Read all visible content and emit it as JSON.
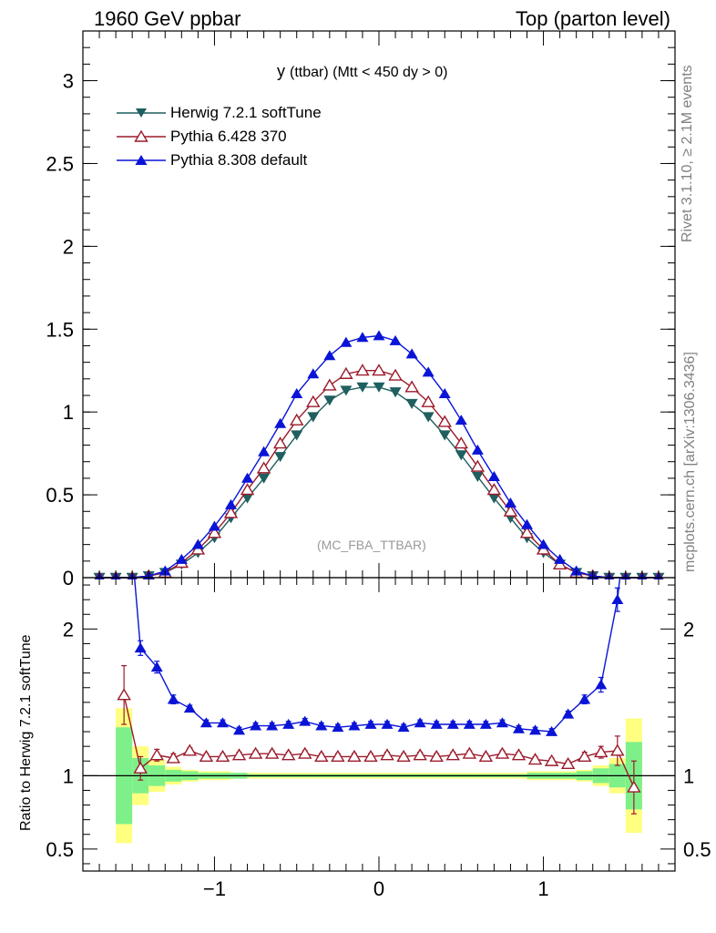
{
  "header": {
    "left": "1960 GeV ppbar",
    "right": "Top (parton level)"
  },
  "side_text": {
    "rivet": "Rivet 3.1.10, ≥ 2.1M events",
    "mcplots": "mcplots.cern.ch [arXiv:1306.3436]"
  },
  "watermark": "(MC_FBA_TTBAR)",
  "colors": {
    "herwig": "#1f5f5f",
    "pythia6": "#9b1b2b",
    "pythia8": "#0a14d6",
    "band_inner": "#7ef08a",
    "band_outer": "#ffff80"
  },
  "chart_data": [
    {
      "type": "line",
      "title": "y (ttbar) (Mtt < 450 dy > 0)",
      "title_main": "y",
      "title_rest": "(ttbar) (Mtt < 450 dy > 0)",
      "xlim": [
        -1.8,
        1.8
      ],
      "ylim": [
        0,
        3.3
      ],
      "y_ticks": [
        0,
        0.5,
        1,
        1.5,
        2,
        2.5,
        3
      ],
      "y_tick_labels": [
        "0",
        "0.5",
        "1",
        "1.5",
        "2",
        "2.5",
        "3"
      ],
      "legend_position": "top-left",
      "x": [
        -1.7,
        -1.6,
        -1.5,
        -1.4,
        -1.3,
        -1.2,
        -1.1,
        -1.0,
        -0.9,
        -0.8,
        -0.7,
        -0.6,
        -0.5,
        -0.4,
        -0.3,
        -0.2,
        -0.1,
        0.0,
        0.1,
        0.2,
        0.3,
        0.4,
        0.5,
        0.6,
        0.7,
        0.8,
        0.9,
        1.0,
        1.1,
        1.2,
        1.3,
        1.4,
        1.5,
        1.6,
        1.7
      ],
      "series": [
        {
          "name": "Herwig 7.2.1 softTune",
          "marker": "triangle-down",
          "values": [
            0.0,
            0.0,
            0.0,
            0.01,
            0.03,
            0.08,
            0.15,
            0.24,
            0.36,
            0.48,
            0.6,
            0.73,
            0.86,
            0.97,
            1.07,
            1.13,
            1.15,
            1.15,
            1.12,
            1.05,
            0.97,
            0.86,
            0.74,
            0.61,
            0.48,
            0.36,
            0.24,
            0.15,
            0.08,
            0.03,
            0.01,
            0.0,
            0.0,
            0.0,
            0.0
          ]
        },
        {
          "name": "Pythia 6.428 370",
          "marker": "triangle-up-open",
          "values": [
            0.0,
            0.0,
            0.0,
            0.01,
            0.03,
            0.09,
            0.17,
            0.27,
            0.39,
            0.53,
            0.66,
            0.81,
            0.95,
            1.06,
            1.16,
            1.23,
            1.25,
            1.25,
            1.22,
            1.15,
            1.06,
            0.94,
            0.81,
            0.67,
            0.53,
            0.4,
            0.27,
            0.17,
            0.08,
            0.03,
            0.01,
            0.0,
            0.0,
            0.0,
            0.0
          ]
        },
        {
          "name": "Pythia 8.308 default",
          "marker": "triangle-up",
          "values": [
            0.0,
            0.0,
            0.0,
            0.01,
            0.04,
            0.11,
            0.2,
            0.31,
            0.44,
            0.6,
            0.76,
            0.93,
            1.11,
            1.23,
            1.34,
            1.42,
            1.45,
            1.46,
            1.43,
            1.35,
            1.24,
            1.11,
            0.95,
            0.77,
            0.61,
            0.45,
            0.32,
            0.2,
            0.11,
            0.04,
            0.01,
            0.0,
            0.0,
            0.0,
            0.0
          ]
        }
      ]
    },
    {
      "type": "line",
      "ylabel": "Ratio to Herwig 7.2.1 softTune",
      "xlim": [
        -1.8,
        1.8
      ],
      "ylim": [
        0.35,
        2.35
      ],
      "y_ticks": [
        0.5,
        1,
        2
      ],
      "y_tick_labels": [
        "0.5",
        "1",
        "2"
      ],
      "x_ticks": [
        -1,
        0,
        1
      ],
      "x_tick_labels": [
        "−1",
        "0",
        "1"
      ],
      "reference_line": 1,
      "band_edges": [
        -1.6,
        -1.5,
        -1.4,
        -1.3,
        -1.2,
        -1.1,
        -1.0,
        -0.9,
        -0.8,
        -0.7,
        -0.6,
        -0.5,
        -0.4,
        -0.3,
        -0.2,
        -0.1,
        0.0,
        0.1,
        0.2,
        0.3,
        0.4,
        0.5,
        0.6,
        0.7,
        0.8,
        0.9,
        1.0,
        1.1,
        1.2,
        1.3,
        1.4,
        1.5,
        1.6
      ],
      "band_inner": [
        0.33,
        0.12,
        0.07,
        0.04,
        0.03,
        0.02,
        0.02,
        0.02,
        0.01,
        0.01,
        0.01,
        0.01,
        0.01,
        0.01,
        0.01,
        0.01,
        0.01,
        0.01,
        0.01,
        0.01,
        0.01,
        0.01,
        0.01,
        0.01,
        0.01,
        0.02,
        0.02,
        0.02,
        0.03,
        0.05,
        0.08,
        0.23
      ],
      "band_outer": [
        0.46,
        0.2,
        0.11,
        0.06,
        0.04,
        0.03,
        0.03,
        0.02,
        0.02,
        0.02,
        0.02,
        0.02,
        0.02,
        0.02,
        0.02,
        0.02,
        0.02,
        0.02,
        0.02,
        0.02,
        0.02,
        0.02,
        0.02,
        0.02,
        0.02,
        0.03,
        0.03,
        0.03,
        0.04,
        0.07,
        0.12,
        0.39
      ],
      "series": [
        {
          "name": "Pythia 6.428 370",
          "marker": "triangle-up-open",
          "x": [
            -1.55,
            -1.45,
            -1.35,
            -1.25,
            -1.15,
            -1.05,
            -0.95,
            -0.85,
            -0.75,
            -0.65,
            -0.55,
            -0.45,
            -0.35,
            -0.25,
            -0.15,
            -0.05,
            0.05,
            0.15,
            0.25,
            0.35,
            0.45,
            0.55,
            0.65,
            0.75,
            0.85,
            0.95,
            1.05,
            1.15,
            1.25,
            1.35,
            1.45,
            1.55
          ],
          "values": [
            1.55,
            1.05,
            1.14,
            1.12,
            1.17,
            1.13,
            1.13,
            1.14,
            1.15,
            1.15,
            1.14,
            1.15,
            1.13,
            1.13,
            1.13,
            1.13,
            1.14,
            1.13,
            1.14,
            1.13,
            1.14,
            1.15,
            1.13,
            1.15,
            1.14,
            1.11,
            1.1,
            1.08,
            1.13,
            1.16,
            1.17,
            0.92
          ],
          "err": [
            0.2,
            0.08,
            0.04,
            0.03,
            0.02,
            0.02,
            0.02,
            0.02,
            0.02,
            0.02,
            0.02,
            0.02,
            0.02,
            0.02,
            0.02,
            0.02,
            0.02,
            0.02,
            0.02,
            0.02,
            0.02,
            0.02,
            0.02,
            0.02,
            0.02,
            0.02,
            0.02,
            0.02,
            0.03,
            0.04,
            0.1,
            0.18
          ]
        },
        {
          "name": "Pythia 8.308 default",
          "marker": "triangle-up",
          "x": [
            -1.45,
            -1.35,
            -1.25,
            -1.15,
            -1.05,
            -0.95,
            -0.85,
            -0.75,
            -0.65,
            -0.55,
            -0.45,
            -0.35,
            -0.25,
            -0.15,
            -0.05,
            0.05,
            0.15,
            0.25,
            0.35,
            0.45,
            0.55,
            0.65,
            0.75,
            0.85,
            0.95,
            1.05,
            1.15,
            1.25,
            1.35,
            1.45
          ],
          "values": [
            1.87,
            1.74,
            1.52,
            1.46,
            1.36,
            1.36,
            1.31,
            1.34,
            1.34,
            1.35,
            1.37,
            1.34,
            1.33,
            1.34,
            1.35,
            1.35,
            1.33,
            1.36,
            1.35,
            1.35,
            1.35,
            1.35,
            1.36,
            1.32,
            1.31,
            1.3,
            1.42,
            1.52,
            1.62,
            2.2
          ],
          "err": [
            0.05,
            0.04,
            0.03,
            0.02,
            0.02,
            0.02,
            0.02,
            0.02,
            0.02,
            0.02,
            0.02,
            0.02,
            0.02,
            0.02,
            0.02,
            0.02,
            0.02,
            0.02,
            0.02,
            0.02,
            0.02,
            0.02,
            0.02,
            0.02,
            0.02,
            0.02,
            0.02,
            0.03,
            0.05,
            0.08
          ]
        }
      ]
    }
  ]
}
